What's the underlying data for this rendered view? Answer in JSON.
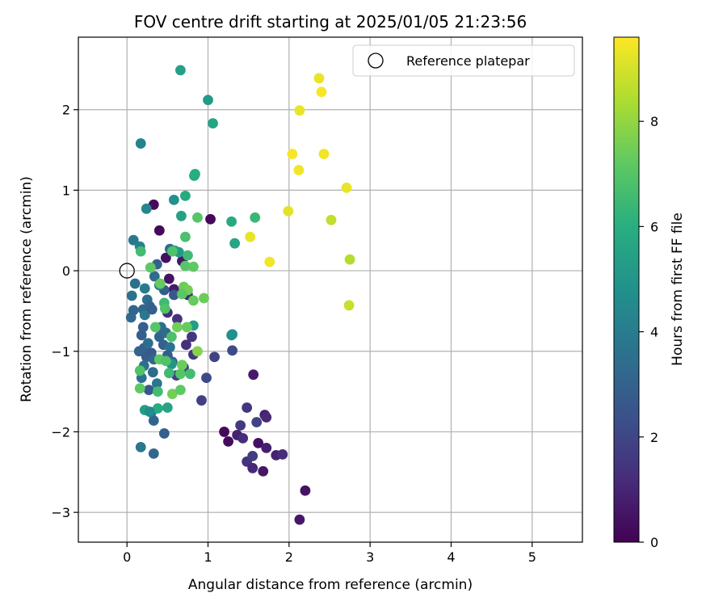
{
  "chart_data": {
    "type": "scatter",
    "title": "FOV centre drift starting at 2025/01/05 21:23:56",
    "xlabel": "Angular distance from reference (arcmin)",
    "ylabel": "Rotation from reference (arcmin)",
    "xlim": [
      -0.6,
      5.62
    ],
    "ylim": [
      -3.37,
      2.9
    ],
    "xticks": [
      0,
      1,
      2,
      3,
      4,
      5
    ],
    "xtick_labels": [
      "0",
      "1",
      "2",
      "3",
      "4",
      "5"
    ],
    "yticks": [
      -3,
      -2,
      -1,
      0,
      1,
      2
    ],
    "ytick_labels": [
      "−3",
      "−2",
      "−1",
      "0",
      "1",
      "2"
    ],
    "grid": true,
    "legend": {
      "placement": "top-right",
      "entries": [
        "Reference platepar"
      ]
    },
    "reference_point": {
      "x": 0,
      "y": 0,
      "marker": "open-circle"
    },
    "colorbar": {
      "label": "Hours from first FF file",
      "colormap": "viridis",
      "range": [
        0,
        9.6
      ],
      "ticks": [
        0,
        2,
        4,
        6,
        8
      ],
      "tick_labels": [
        "0",
        "2",
        "4",
        "6",
        "8"
      ]
    },
    "points": [
      {
        "x": 0.33,
        "y": 0.82,
        "c": 0.3
      },
      {
        "x": 0.4,
        "y": 0.5,
        "c": 0.2
      },
      {
        "x": 1.03,
        "y": 0.64,
        "c": 0.2
      },
      {
        "x": 0.48,
        "y": 0.16,
        "c": 0.4
      },
      {
        "x": 0.52,
        "y": -0.1,
        "c": 0.5
      },
      {
        "x": 0.58,
        "y": -0.23,
        "c": 0.7
      },
      {
        "x": 0.68,
        "y": 0.12,
        "c": 0.6
      },
      {
        "x": 0.75,
        "y": -0.3,
        "c": 1.0
      },
      {
        "x": 0.5,
        "y": -0.52,
        "c": 1.2
      },
      {
        "x": 0.62,
        "y": -0.6,
        "c": 1.4
      },
      {
        "x": 0.8,
        "y": -0.82,
        "c": 1.5
      },
      {
        "x": 0.73,
        "y": -0.92,
        "c": 1.3
      },
      {
        "x": 0.82,
        "y": -1.04,
        "c": 1.6
      },
      {
        "x": 0.7,
        "y": -1.2,
        "c": 1.7
      },
      {
        "x": 0.61,
        "y": -1.3,
        "c": 1.8
      },
      {
        "x": 1.08,
        "y": -1.07,
        "c": 1.9
      },
      {
        "x": 0.98,
        "y": -1.33,
        "c": 2.1
      },
      {
        "x": 0.92,
        "y": -1.61,
        "c": 1.8
      },
      {
        "x": 1.56,
        "y": -1.29,
        "c": 0.7
      },
      {
        "x": 1.3,
        "y": -0.99,
        "c": 2.2
      },
      {
        "x": 1.2,
        "y": -2.0,
        "c": 0.2
      },
      {
        "x": 1.25,
        "y": -2.12,
        "c": 0.3
      },
      {
        "x": 1.36,
        "y": -2.04,
        "c": 0.9
      },
      {
        "x": 1.4,
        "y": -1.92,
        "c": 1.6
      },
      {
        "x": 1.43,
        "y": -2.08,
        "c": 1.2
      },
      {
        "x": 1.48,
        "y": -1.7,
        "c": 1.5
      },
      {
        "x": 1.48,
        "y": -2.37,
        "c": 1.4
      },
      {
        "x": 1.55,
        "y": -2.3,
        "c": 1.7
      },
      {
        "x": 1.55,
        "y": -2.45,
        "c": 1.1
      },
      {
        "x": 1.6,
        "y": -1.88,
        "c": 1.9
      },
      {
        "x": 1.62,
        "y": -2.14,
        "c": 0.4
      },
      {
        "x": 1.7,
        "y": -1.79,
        "c": 0.9
      },
      {
        "x": 1.72,
        "y": -1.82,
        "c": 1.1
      },
      {
        "x": 1.72,
        "y": -2.2,
        "c": 0.8
      },
      {
        "x": 1.68,
        "y": -2.49,
        "c": 0.6
      },
      {
        "x": 1.84,
        "y": -2.29,
        "c": 0.9
      },
      {
        "x": 1.92,
        "y": -2.28,
        "c": 1.2
      },
      {
        "x": 2.2,
        "y": -2.73,
        "c": 0.5
      },
      {
        "x": 2.13,
        "y": -3.09,
        "c": 0.6
      },
      {
        "x": 0.05,
        "y": -0.58,
        "c": 3.3
      },
      {
        "x": 0.08,
        "y": -0.49,
        "c": 3.2
      },
      {
        "x": 0.1,
        "y": -0.16,
        "c": 3.5
      },
      {
        "x": 0.06,
        "y": -0.31,
        "c": 3.6
      },
      {
        "x": 0.08,
        "y": 0.38,
        "c": 3.8
      },
      {
        "x": 0.16,
        "y": 0.3,
        "c": 4.2
      },
      {
        "x": 0.24,
        "y": 0.77,
        "c": 4.4
      },
      {
        "x": 0.22,
        "y": -0.22,
        "c": 3.9
      },
      {
        "x": 0.2,
        "y": -0.48,
        "c": 3.2
      },
      {
        "x": 0.22,
        "y": -0.55,
        "c": 3.8
      },
      {
        "x": 0.25,
        "y": -0.36,
        "c": 3.4
      },
      {
        "x": 0.28,
        "y": -0.44,
        "c": 3.1
      },
      {
        "x": 0.31,
        "y": -0.48,
        "c": 2.9
      },
      {
        "x": 0.34,
        "y": -0.07,
        "c": 3.3
      },
      {
        "x": 0.37,
        "y": 0.08,
        "c": 3.0
      },
      {
        "x": 0.18,
        "y": -0.8,
        "c": 2.8
      },
      {
        "x": 0.2,
        "y": -0.7,
        "c": 2.9
      },
      {
        "x": 0.15,
        "y": -1.0,
        "c": 3.1
      },
      {
        "x": 0.21,
        "y": -0.96,
        "c": 3.0
      },
      {
        "x": 0.26,
        "y": -0.9,
        "c": 3.4
      },
      {
        "x": 0.24,
        "y": -1.07,
        "c": 2.8
      },
      {
        "x": 0.3,
        "y": -1.02,
        "c": 2.7
      },
      {
        "x": 0.33,
        "y": -1.1,
        "c": 3.2
      },
      {
        "x": 0.21,
        "y": -1.18,
        "c": 3.5
      },
      {
        "x": 0.18,
        "y": -1.33,
        "c": 3.6
      },
      {
        "x": 0.32,
        "y": -1.26,
        "c": 3.3
      },
      {
        "x": 0.27,
        "y": -1.48,
        "c": 2.6
      },
      {
        "x": 0.37,
        "y": -1.4,
        "c": 3.7
      },
      {
        "x": 0.4,
        "y": -0.82,
        "c": 3.1
      },
      {
        "x": 0.42,
        "y": -0.7,
        "c": 3.4
      },
      {
        "x": 0.45,
        "y": -0.92,
        "c": 2.9
      },
      {
        "x": 0.48,
        "y": -0.77,
        "c": 3.3
      },
      {
        "x": 0.53,
        "y": -0.95,
        "c": 3.6
      },
      {
        "x": 0.5,
        "y": -1.05,
        "c": 2.8
      },
      {
        "x": 0.56,
        "y": -1.13,
        "c": 3.2
      },
      {
        "x": 0.58,
        "y": -0.3,
        "c": 2.6
      },
      {
        "x": 0.46,
        "y": -0.24,
        "c": 2.8
      },
      {
        "x": 0.4,
        "y": -0.18,
        "c": 4.0
      },
      {
        "x": 0.53,
        "y": 0.27,
        "c": 3.5
      },
      {
        "x": 0.3,
        "y": -1.76,
        "c": 3.6
      },
      {
        "x": 0.33,
        "y": -1.86,
        "c": 3.1
      },
      {
        "x": 0.46,
        "y": -2.02,
        "c": 2.9
      },
      {
        "x": 0.17,
        "y": -2.19,
        "c": 3.8
      },
      {
        "x": 0.33,
        "y": -2.27,
        "c": 3.2
      },
      {
        "x": 0.17,
        "y": 1.58,
        "c": 4.2
      },
      {
        "x": 0.58,
        "y": 0.88,
        "c": 4.8
      },
      {
        "x": 0.66,
        "y": 2.49,
        "c": 5.4
      },
      {
        "x": 1.0,
        "y": 2.12,
        "c": 5.2
      },
      {
        "x": 1.06,
        "y": 1.83,
        "c": 5.6
      },
      {
        "x": 0.83,
        "y": 1.18,
        "c": 5.7
      },
      {
        "x": 0.84,
        "y": 1.2,
        "c": 6.0
      },
      {
        "x": 0.72,
        "y": 0.93,
        "c": 5.8
      },
      {
        "x": 0.67,
        "y": 0.68,
        "c": 5.5
      },
      {
        "x": 1.29,
        "y": 0.61,
        "c": 5.8
      },
      {
        "x": 1.33,
        "y": 0.34,
        "c": 5.6
      },
      {
        "x": 1.58,
        "y": 0.66,
        "c": 6.4
      },
      {
        "x": 1.29,
        "y": -0.8,
        "c": 5.0
      },
      {
        "x": 1.3,
        "y": -0.79,
        "c": 4.8
      },
      {
        "x": 0.22,
        "y": -1.73,
        "c": 5.3
      },
      {
        "x": 0.5,
        "y": -1.7,
        "c": 5.6
      },
      {
        "x": 0.38,
        "y": -1.71,
        "c": 5.9
      },
      {
        "x": 0.28,
        "y": -1.75,
        "c": 4.6
      },
      {
        "x": 0.55,
        "y": -1.16,
        "c": 5.0
      },
      {
        "x": 0.59,
        "y": 0.25,
        "c": 5.7
      },
      {
        "x": 0.64,
        "y": 0.23,
        "c": 5.2
      },
      {
        "x": 0.82,
        "y": -0.68,
        "c": 5.3
      },
      {
        "x": 0.87,
        "y": 0.66,
        "c": 7.0
      },
      {
        "x": 0.72,
        "y": 0.42,
        "c": 6.8
      },
      {
        "x": 0.56,
        "y": 0.24,
        "c": 6.9
      },
      {
        "x": 0.17,
        "y": 0.24,
        "c": 6.6
      },
      {
        "x": 0.29,
        "y": 0.04,
        "c": 7.2
      },
      {
        "x": 0.41,
        "y": -0.16,
        "c": 7.3
      },
      {
        "x": 0.75,
        "y": 0.19,
        "c": 6.5
      },
      {
        "x": 0.72,
        "y": 0.06,
        "c": 7.0
      },
      {
        "x": 0.82,
        "y": 0.05,
        "c": 7.2
      },
      {
        "x": 0.7,
        "y": -0.2,
        "c": 7.4
      },
      {
        "x": 0.75,
        "y": -0.24,
        "c": 7.5
      },
      {
        "x": 0.68,
        "y": -0.29,
        "c": 7.1
      },
      {
        "x": 0.82,
        "y": -0.37,
        "c": 7.3
      },
      {
        "x": 0.95,
        "y": -0.34,
        "c": 7.4
      },
      {
        "x": 0.46,
        "y": -0.4,
        "c": 6.5
      },
      {
        "x": 0.47,
        "y": -0.47,
        "c": 6.9
      },
      {
        "x": 0.35,
        "y": -0.7,
        "c": 7.0
      },
      {
        "x": 0.55,
        "y": -0.82,
        "c": 6.8
      },
      {
        "x": 0.62,
        "y": -0.7,
        "c": 7.5
      },
      {
        "x": 0.74,
        "y": -0.7,
        "c": 7.3
      },
      {
        "x": 0.4,
        "y": -1.1,
        "c": 7.2
      },
      {
        "x": 0.48,
        "y": -1.12,
        "c": 6.9
      },
      {
        "x": 0.52,
        "y": -1.27,
        "c": 6.5
      },
      {
        "x": 0.66,
        "y": -1.28,
        "c": 7.0
      },
      {
        "x": 0.68,
        "y": -1.17,
        "c": 7.4
      },
      {
        "x": 0.78,
        "y": -1.28,
        "c": 6.6
      },
      {
        "x": 0.87,
        "y": -1.0,
        "c": 7.8
      },
      {
        "x": 0.56,
        "y": -1.53,
        "c": 7.5
      },
      {
        "x": 0.66,
        "y": -1.48,
        "c": 7.2
      },
      {
        "x": 0.38,
        "y": -1.5,
        "c": 6.6
      },
      {
        "x": 0.16,
        "y": -1.24,
        "c": 6.9
      },
      {
        "x": 0.16,
        "y": -1.46,
        "c": 7.2
      },
      {
        "x": 1.52,
        "y": 0.42,
        "c": 9.3
      },
      {
        "x": 1.76,
        "y": 0.11,
        "c": 9.4
      },
      {
        "x": 1.99,
        "y": 0.74,
        "c": 9.2
      },
      {
        "x": 2.04,
        "y": 1.45,
        "c": 9.5
      },
      {
        "x": 2.12,
        "y": 1.25,
        "c": 9.4
      },
      {
        "x": 2.13,
        "y": 1.99,
        "c": 9.3
      },
      {
        "x": 2.37,
        "y": 2.39,
        "c": 9.3
      },
      {
        "x": 2.4,
        "y": 2.22,
        "c": 9.5
      },
      {
        "x": 2.43,
        "y": 1.45,
        "c": 9.4
      },
      {
        "x": 2.52,
        "y": 0.63,
        "c": 8.7
      },
      {
        "x": 2.71,
        "y": 1.03,
        "c": 9.3
      },
      {
        "x": 2.75,
        "y": 0.14,
        "c": 8.5
      },
      {
        "x": 2.74,
        "y": -0.43,
        "c": 8.8
      }
    ]
  }
}
